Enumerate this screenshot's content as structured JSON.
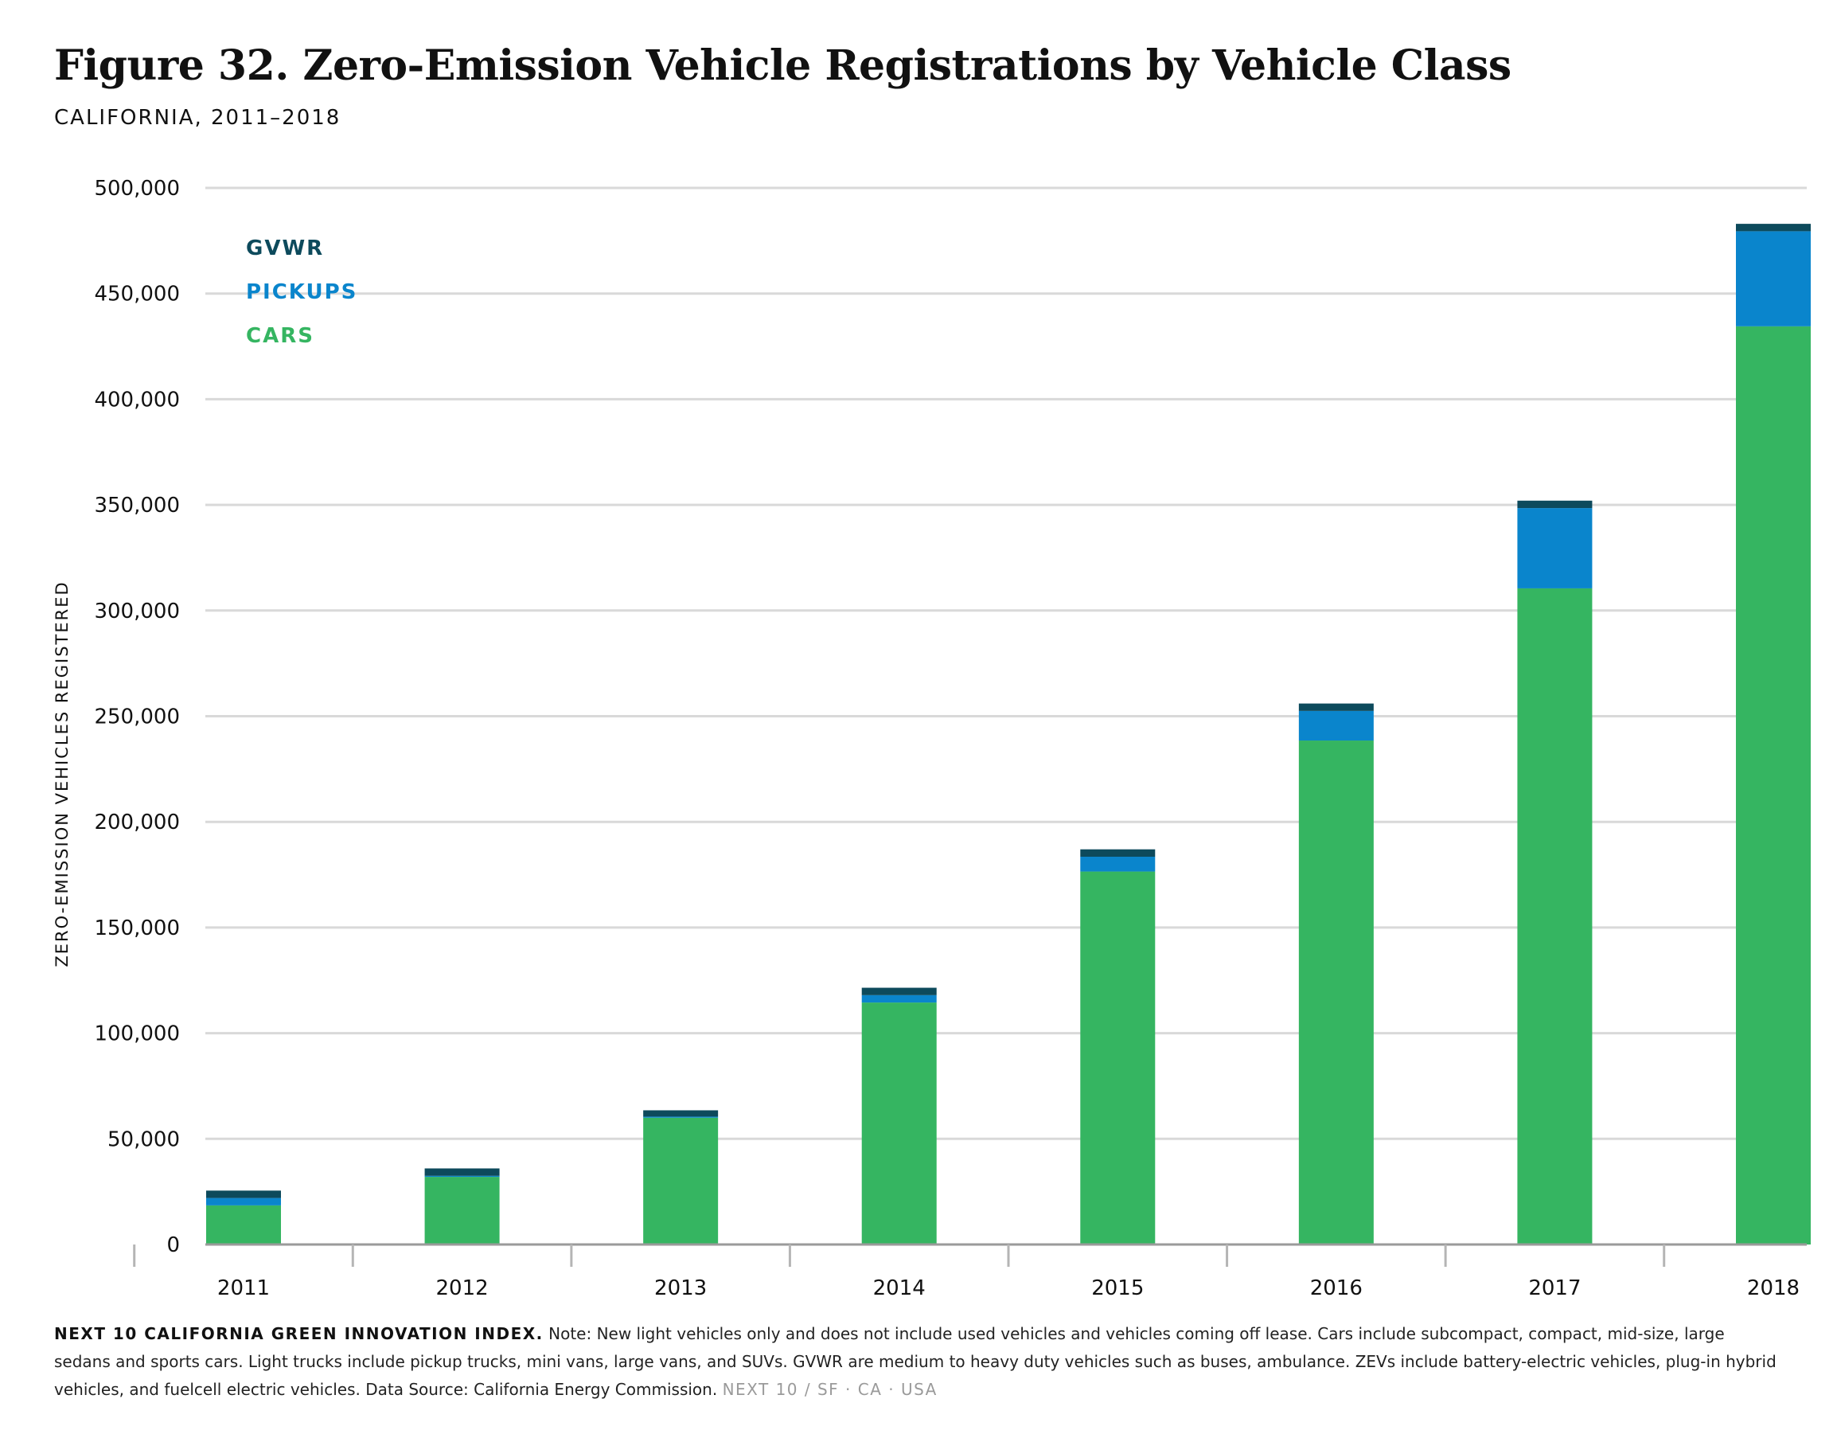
{
  "header": {
    "title": "Figure 32. Zero-Emission Vehicle Registrations by Vehicle Class",
    "subtitle": "CALIFORNIA, 2011–2018"
  },
  "legend": {
    "items": [
      {
        "label": "GVWR",
        "color": "#0d4a5c"
      },
      {
        "label": "PICKUPS",
        "color": "#0a85cc"
      },
      {
        "label": "CARS",
        "color": "#35b561"
      }
    ]
  },
  "chart_data": {
    "type": "bar",
    "stacked": true,
    "categories": [
      "2011",
      "2012",
      "2013",
      "2014",
      "2015",
      "2016",
      "2017",
      "2018"
    ],
    "series": [
      {
        "name": "CARS",
        "color": "#35b561",
        "values": [
          18500,
          32000,
          60000,
          114500,
          176500,
          238500,
          310500,
          434500
        ]
      },
      {
        "name": "PICKUPS",
        "color": "#0a85cc",
        "values": [
          3500,
          500,
          500,
          3500,
          7000,
          14000,
          38000,
          45000
        ]
      },
      {
        "name": "GVWR",
        "color": "#0d4a5c",
        "values": [
          3500,
          3500,
          3000,
          3500,
          3500,
          3500,
          3500,
          3500
        ]
      }
    ],
    "ylabel": "ZERO-EMISSION VEHICLES REGISTERED",
    "xlabel": "",
    "ylim": [
      0,
      500000
    ],
    "yticks": [
      0,
      50000,
      100000,
      150000,
      200000,
      250000,
      300000,
      350000,
      400000,
      450000,
      500000
    ],
    "ytick_labels": [
      "0",
      "50,000",
      "100,000",
      "150,000",
      "200,000",
      "250,000",
      "300,000",
      "350,000",
      "400,000",
      "450,000",
      "500,000"
    ],
    "grid": true,
    "legend_position": "top-left"
  },
  "footer": {
    "org": "NEXT 10 CALIFORNIA GREEN INNOVATION INDEX.",
    "note": "Note: New light vehicles only and does not include used vehicles and vehicles coming off lease. Cars include subcompact, compact, mid-size, large sedans and sports cars. Light trucks include pickup trucks, mini vans, large vans, and SUVs. GVWR are medium to heavy duty vehicles such as buses, ambulance. ZEVs include battery-electric vehicles, plug-in hybrid vehicles, and fuelcell electric vehicles. Data Source: California Energy Commission.",
    "signature": "NEXT 10  /  SF · CA · USA"
  }
}
